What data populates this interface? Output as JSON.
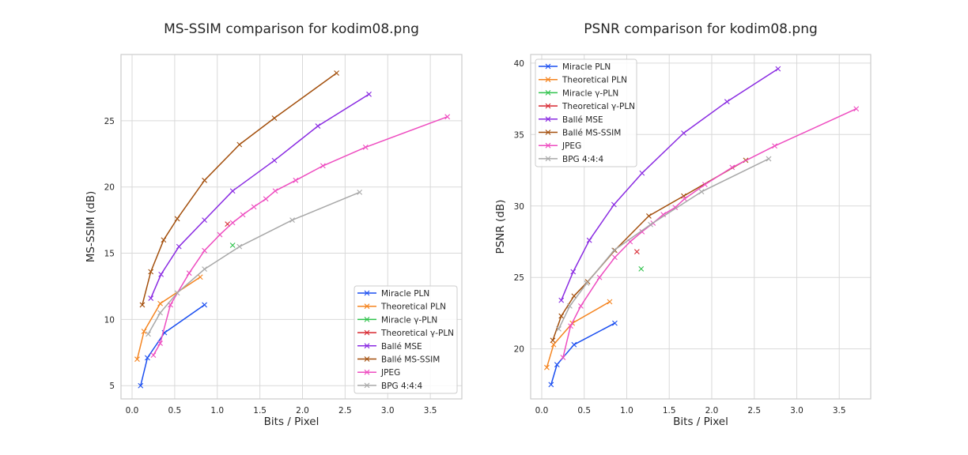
{
  "colors": {
    "Miracle PLN": "#1a4ef0",
    "Theoretical PLN": "#f5841f",
    "Miracle γ-PLN": "#2ec24b",
    "Theoretical γ-PLN": "#d7262f",
    "Ballé MSE": "#8a2be2",
    "Ballé MS-SSIM": "#a34f0c",
    "JPEG": "#ee4dc0",
    "BPG 4:4:4": "#a8a8a8"
  },
  "chart_data": [
    {
      "type": "line",
      "title": "MS-SSIM comparison for kodim08.png",
      "xlabel": "Bits / Pixel",
      "ylabel": "MS-SSIM (dB)",
      "xlim": [
        -0.13,
        3.87
      ],
      "ylim": [
        4.0,
        30.0
      ],
      "xticks": [
        "0.0",
        "0.5",
        "1.0",
        "1.5",
        "2.0",
        "2.5",
        "3.0",
        "3.5"
      ],
      "yticks": [
        "5",
        "10",
        "15",
        "20",
        "25"
      ],
      "grid": true,
      "legend_position": "lower-right",
      "series": [
        {
          "name": "Miracle PLN",
          "x": [
            0.1,
            0.18,
            0.38,
            0.85
          ],
          "y": [
            5.0,
            7.1,
            9.0,
            11.1
          ]
        },
        {
          "name": "Theoretical PLN",
          "x": [
            0.06,
            0.14,
            0.33,
            0.8
          ],
          "y": [
            7.0,
            9.1,
            11.2,
            13.2
          ]
        },
        {
          "name": "Miracle γ-PLN",
          "x": [
            1.18
          ],
          "y": [
            15.6
          ]
        },
        {
          "name": "Theoretical γ-PLN",
          "x": [
            1.12
          ],
          "y": [
            17.2
          ]
        },
        {
          "name": "Ballé MSE",
          "x": [
            0.22,
            0.34,
            0.55,
            0.85,
            1.18,
            1.67,
            2.18,
            2.78
          ],
          "y": [
            11.6,
            13.4,
            15.5,
            17.5,
            19.7,
            22.0,
            24.6,
            27.0
          ]
        },
        {
          "name": "Ballé MS-SSIM",
          "x": [
            0.12,
            0.22,
            0.37,
            0.53,
            0.85,
            1.26,
            1.67,
            2.4
          ],
          "y": [
            11.1,
            13.6,
            16.0,
            17.6,
            20.5,
            23.2,
            25.2,
            28.6
          ]
        },
        {
          "name": "JPEG",
          "x": [
            0.25,
            0.33,
            0.45,
            0.67,
            0.85,
            1.03,
            1.18,
            1.3,
            1.43,
            1.57,
            1.68,
            1.92,
            2.24,
            2.74,
            3.7
          ],
          "y": [
            7.3,
            8.2,
            11.1,
            13.5,
            15.2,
            16.4,
            17.3,
            17.9,
            18.5,
            19.1,
            19.7,
            20.5,
            21.6,
            23.0,
            25.3
          ]
        },
        {
          "name": "BPG 4:4:4",
          "x": [
            0.19,
            0.33,
            0.53,
            0.85,
            1.26,
            1.88,
            2.67
          ],
          "y": [
            8.9,
            10.5,
            12.0,
            13.8,
            15.5,
            17.5,
            19.6
          ]
        }
      ]
    },
    {
      "type": "line",
      "title": "PSNR comparison for kodim08.png",
      "xlabel": "Bits / Pixel",
      "ylabel": "PSNR (dB)",
      "xlim": [
        -0.13,
        3.87
      ],
      "ylim": [
        16.5,
        40.6
      ],
      "xticks": [
        "0.0",
        "0.5",
        "1.0",
        "1.5",
        "2.0",
        "2.5",
        "3.0",
        "3.5"
      ],
      "yticks": [
        "20",
        "25",
        "30",
        "35",
        "40"
      ],
      "grid": true,
      "legend_position": "upper-left",
      "series": [
        {
          "name": "Miracle PLN",
          "x": [
            0.11,
            0.18,
            0.38,
            0.86
          ],
          "y": [
            17.5,
            18.9,
            20.3,
            21.8
          ]
        },
        {
          "name": "Theoretical PLN",
          "x": [
            0.06,
            0.14,
            0.36,
            0.8
          ],
          "y": [
            18.7,
            20.3,
            21.8,
            23.3
          ]
        },
        {
          "name": "Miracle γ-PLN",
          "x": [
            1.17
          ],
          "y": [
            25.6
          ]
        },
        {
          "name": "Theoretical γ-PLN",
          "x": [
            1.12
          ],
          "y": [
            26.8
          ]
        },
        {
          "name": "Ballé MSE",
          "x": [
            0.23,
            0.37,
            0.56,
            0.85,
            1.18,
            1.67,
            2.18,
            2.78
          ],
          "y": [
            23.4,
            25.4,
            27.6,
            30.1,
            32.3,
            35.1,
            37.3,
            39.6
          ]
        },
        {
          "name": "Ballé MS-SSIM",
          "x": [
            0.13,
            0.23,
            0.38,
            0.54,
            0.86,
            1.26,
            1.67,
            2.4
          ],
          "y": [
            20.6,
            22.3,
            23.7,
            24.7,
            26.9,
            29.3,
            30.7,
            33.2
          ]
        },
        {
          "name": "JPEG",
          "x": [
            0.25,
            0.34,
            0.46,
            0.68,
            0.86,
            1.04,
            1.18,
            1.31,
            1.43,
            1.57,
            1.68,
            1.92,
            2.24,
            2.74,
            3.7
          ],
          "y": [
            19.4,
            21.6,
            23.0,
            25.0,
            26.4,
            27.5,
            28.2,
            28.8,
            29.4,
            29.9,
            30.5,
            31.5,
            32.7,
            34.2,
            36.8
          ]
        },
        {
          "name": "BPG 4:4:4",
          "x": [
            0.2,
            0.33,
            0.53,
            0.85,
            1.28,
            1.88,
            2.67
          ],
          "y": [
            21.4,
            23.0,
            24.6,
            26.9,
            28.7,
            31.0,
            33.3
          ]
        }
      ]
    }
  ]
}
